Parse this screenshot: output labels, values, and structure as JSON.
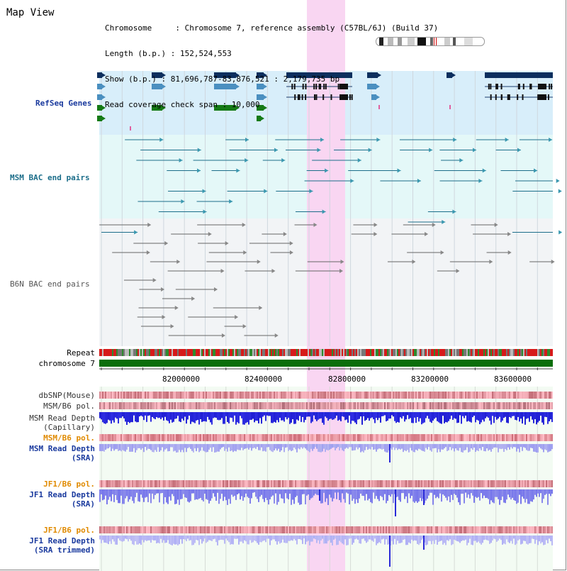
{
  "header": {
    "title": "Map View",
    "info_rows": [
      "Chromosome     : Chromosome 7, reference assembly (C57BL/6J) (Build 37)",
      "Length (b.p.) : 152,524,553",
      "Show (b.p.) : 81,696,787-83,876,521 : 2,179,735 bp",
      "Read coverage check span : 10,000"
    ]
  },
  "tracks": {
    "refseq": "RefSeq Genes",
    "msm_bac": "MSM BAC end pairs",
    "b6n_bac": "B6N BAC end pairs",
    "repeat": "Repeat",
    "chromosome": "chromosome 7",
    "dbsnp": "dbSNP(Mouse)",
    "msm_b6_pol_1": "MSM/B6 pol.",
    "msm_depth_cap_1": "MSM Read Depth",
    "msm_depth_cap_2": "(Capillary)",
    "msm_b6_pol_2": "MSM/B6 pol.",
    "msm_depth_sra_1": "MSM Read Depth",
    "msm_depth_sra_2": "(SRA)",
    "jf1_b6_pol_1": "JF1/B6 pol.",
    "jf1_depth_sra_1": "JF1 Read Depth",
    "jf1_depth_sra_2": "(SRA)",
    "jf1_b6_pol_2": "JF1/B6 pol.",
    "jf1_depth_trim_1": "JF1 Read Depth",
    "jf1_depth_trim_2": "(SRA trimmed)"
  },
  "axis": {
    "ticks": [
      "82000000",
      "82400000",
      "82800000",
      "83200000",
      "83600000"
    ]
  },
  "colors": {
    "highlight": "#f9d6f2",
    "refseq_bg": "#d8eefa",
    "msm_bg": "#e4f8f8",
    "b6n_bg": "#f2f4f6",
    "gene_dark": "#0d2f5e",
    "gene_mid": "#4a8fc0",
    "gene_green": "#157a15",
    "chromosome_bar": "#0b6e0b",
    "label_blue": "#1a3a9e",
    "label_orange": "#e08a00",
    "label_teal": "#1c6e8a",
    "depth_blue": "#2a2ad8"
  }
}
